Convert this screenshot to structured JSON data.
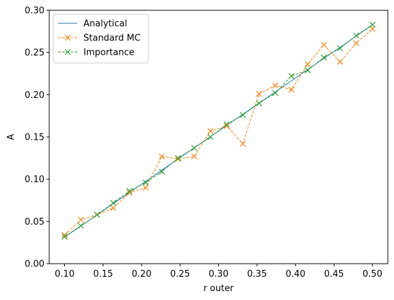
{
  "chart_data": {
    "type": "line",
    "xlabel": "r outer",
    "ylabel": "A",
    "xlim": [
      0.08,
      0.52
    ],
    "ylim": [
      0.0,
      0.3
    ],
    "xticks": [
      "0.10",
      "0.15",
      "0.20",
      "0.25",
      "0.30",
      "0.35",
      "0.40",
      "0.45",
      "0.50"
    ],
    "yticks": [
      "0.00",
      "0.05",
      "0.10",
      "0.15",
      "0.20",
      "0.25",
      "0.30"
    ],
    "legend_position": "top-left",
    "grid": false,
    "x": [
      0.1,
      0.1211,
      0.1421,
      0.1632,
      0.1842,
      0.2053,
      0.2263,
      0.2474,
      0.2684,
      0.2895,
      0.3105,
      0.3316,
      0.3526,
      0.3737,
      0.3947,
      0.4158,
      0.4368,
      0.4579,
      0.4789,
      0.5
    ],
    "series": [
      {
        "name": "Analytical",
        "color": "#1f77b4",
        "style": "solid",
        "marker": "none",
        "values": [
          0.0314,
          0.0446,
          0.0578,
          0.0711,
          0.0843,
          0.0975,
          0.1107,
          0.124,
          0.1372,
          0.1504,
          0.1636,
          0.1769,
          0.1901,
          0.2033,
          0.2165,
          0.2298,
          0.243,
          0.2562,
          0.2694,
          0.2827
        ]
      },
      {
        "name": "Standard MC",
        "color": "#ff7f0e",
        "style": "dashed",
        "marker": "x",
        "values": [
          0.034,
          0.052,
          0.058,
          0.066,
          0.084,
          0.09,
          0.127,
          0.124,
          0.127,
          0.157,
          0.163,
          0.142,
          0.201,
          0.211,
          0.206,
          0.236,
          0.259,
          0.239,
          0.261,
          0.278
        ]
      },
      {
        "name": "Importance",
        "color": "#2ca02c",
        "style": "dashed",
        "marker": "x",
        "values": [
          0.032,
          0.045,
          0.058,
          0.072,
          0.086,
          0.096,
          0.109,
          0.125,
          0.137,
          0.15,
          0.165,
          0.176,
          0.19,
          0.202,
          0.222,
          0.229,
          0.244,
          0.255,
          0.27,
          0.283
        ]
      }
    ]
  }
}
